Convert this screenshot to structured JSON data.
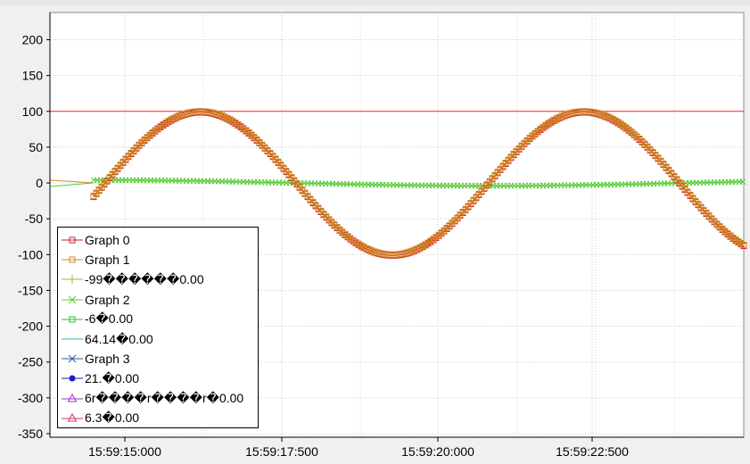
{
  "chart_data": {
    "type": "line",
    "title": "",
    "xlabel": "",
    "ylabel": "",
    "x_ticks": [
      "15:59:15:000",
      "15:59:17:500",
      "15:59:20:000",
      "15:59:22:500"
    ],
    "y_ticks": [
      "200",
      "150",
      "100",
      "50",
      "0",
      "-50",
      "-100",
      "-150",
      "-200",
      "-250",
      "-300",
      "-350"
    ],
    "ylim": [
      -355,
      238
    ],
    "grid": true,
    "series": [
      {
        "name": "Graph 0",
        "color": "#cc2222",
        "marker": "square",
        "shape": "sine",
        "amplitude": 100
      },
      {
        "name": "Graph 1",
        "color": "#d08a20",
        "marker": "square",
        "shape": "sine",
        "amplitude": 100
      },
      {
        "name": "Graph 2",
        "color": "#55cc33",
        "marker": "x",
        "shape": "slow-wave",
        "amplitude": 4
      },
      {
        "name": "Graph 3",
        "color": "#2a5aa0",
        "marker": "x",
        "shape": "none"
      }
    ],
    "reference_line": {
      "value": 100,
      "color": "#ff2020"
    },
    "legend": [
      {
        "label": "Graph 0",
        "color": "#cc2222",
        "marker": "square-icon"
      },
      {
        "label": "Graph 1",
        "color": "#d08a20",
        "marker": "square-icon"
      },
      {
        "label": "-99������0.00",
        "color": "#b0b020",
        "marker": "plus-icon"
      },
      {
        "label": "Graph 2",
        "color": "#55cc33",
        "marker": "x-icon"
      },
      {
        "label": "-6�0.00",
        "color": "#33bb33",
        "marker": "square-icon"
      },
      {
        "label": "64.14�0.00",
        "color": "#20b8a0",
        "marker": "line-icon"
      },
      {
        "label": "Graph 3",
        "color": "#2a5aa0",
        "marker": "x-icon"
      },
      {
        "label": "21.�0.00",
        "color": "#1a1acc",
        "marker": "dot-icon"
      },
      {
        "label": "6r����r����r�0.00",
        "color": "#a030c0",
        "marker": "triangle-icon"
      },
      {
        "label": "6.3�0.00",
        "color": "#d03070",
        "marker": "triangle-icon"
      }
    ],
    "legend_position": "bottom-left"
  }
}
